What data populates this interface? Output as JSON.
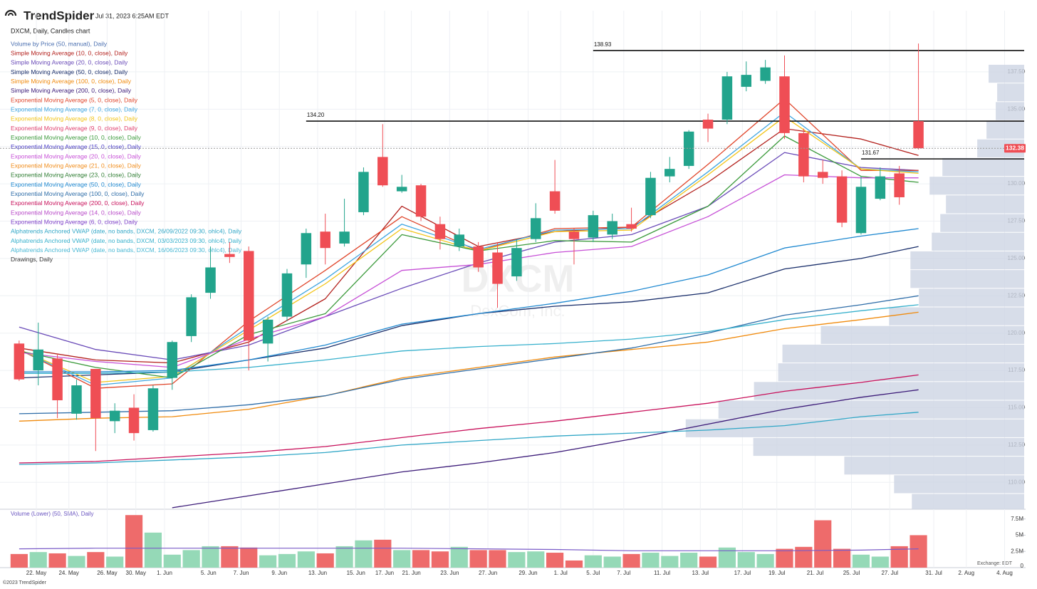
{
  "header": {
    "brand": "TrendSpider",
    "timestamp": "Jul 31, 2023 6:25AM EDT"
  },
  "footer": "©2023 TrendSpider",
  "chart_data": {
    "type": "candlestick",
    "title": "DXCM, Daily, Candles chart",
    "watermark": "DXCM",
    "watermark_subtitle": "DexCom, Inc.",
    "up_color": "#22a48c",
    "down_color": "#ef4e55",
    "grid": true,
    "xlim": [
      -1,
      52.6
    ],
    "xticks": [
      {
        "value": 0.9,
        "label": "22. May"
      },
      {
        "value": 2.6,
        "label": "24. May"
      },
      {
        "value": 4.6,
        "label": "26. May"
      },
      {
        "value": 6.1,
        "label": "30. May"
      },
      {
        "value": 7.6,
        "label": "1. Jun"
      },
      {
        "value": 9.9,
        "label": "5. Jun"
      },
      {
        "value": 11.6,
        "label": "7. Jun"
      },
      {
        "value": 13.6,
        "label": "9. Jun"
      },
      {
        "value": 15.6,
        "label": "13. Jun"
      },
      {
        "value": 17.6,
        "label": "15. Jun"
      },
      {
        "value": 19.1,
        "label": "17. Jun"
      },
      {
        "value": 20.5,
        "label": "21. Jun"
      },
      {
        "value": 22.5,
        "label": "23. Jun"
      },
      {
        "value": 24.5,
        "label": "27. Jun"
      },
      {
        "value": 26.6,
        "label": "29. Jun"
      },
      {
        "value": 28.3,
        "label": "1. Jul"
      },
      {
        "value": 30,
        "label": "5. Jul"
      },
      {
        "value": 31.6,
        "label": "7. Jul"
      },
      {
        "value": 33.6,
        "label": "11. Jul"
      },
      {
        "value": 35.6,
        "label": "13. Jul"
      },
      {
        "value": 37.8,
        "label": "17. Jul"
      },
      {
        "value": 39.6,
        "label": "19. Jul"
      },
      {
        "value": 41.6,
        "label": "21. Jul"
      },
      {
        "value": 43.5,
        "label": "25. Jul"
      },
      {
        "value": 45.5,
        "label": "27. Jul"
      },
      {
        "value": 47.8,
        "label": "31. Jul"
      },
      {
        "value": 49.5,
        "label": "2. Aug"
      },
      {
        "value": 51.5,
        "label": "4. Aug"
      }
    ],
    "ylim": [
      108.2,
      141.6
    ],
    "yticks": [
      {
        "value": 110,
        "label": "110.00"
      },
      {
        "value": 112.5,
        "label": "112.50"
      },
      {
        "value": 115,
        "label": "115.00"
      },
      {
        "value": 117.5,
        "label": "117.50"
      },
      {
        "value": 120,
        "label": "120.00"
      },
      {
        "value": 122.5,
        "label": "122.50"
      },
      {
        "value": 125,
        "label": "125.00"
      },
      {
        "value": 127.5,
        "label": "127.50"
      },
      {
        "value": 130,
        "label": "130.00"
      },
      {
        "value": 132.5,
        "label": "132.50"
      },
      {
        "value": 135,
        "label": "135.00"
      },
      {
        "value": 137.5,
        "label": "137.50"
      }
    ],
    "x": [
      0,
      1,
      2,
      3,
      4,
      5,
      6,
      7,
      8,
      9,
      10,
      11,
      12,
      13,
      14,
      15,
      16,
      17,
      18,
      19,
      20,
      21,
      22,
      23,
      24,
      25,
      26,
      27,
      28,
      29,
      30,
      31,
      32,
      33,
      34,
      35,
      36,
      37,
      38,
      39,
      40,
      41,
      42,
      43,
      44,
      45,
      46,
      47
    ],
    "candles": {
      "open": [
        119.3,
        117.5,
        118.3,
        114.6,
        117.6,
        114.1,
        115.0,
        113.5,
        117.0,
        119.8,
        122.7,
        125.3,
        125.5,
        119.3,
        121.1,
        124.6,
        126.8,
        126.0,
        128.1,
        131.8,
        129.5,
        129.9,
        127.3,
        125.8,
        125.8,
        125.4,
        123.8,
        126.3,
        129.5,
        126.8,
        126.4,
        126.6,
        127.3,
        127.9,
        130.5,
        131.2,
        134.3,
        134.3,
        136.5,
        136.9,
        137.2,
        133.4,
        130.8,
        130.5,
        126.7,
        129.0,
        130.7,
        134.2
      ],
      "high": [
        119.5,
        120.7,
        118.6,
        116.9,
        117.6,
        115.3,
        115.9,
        116.5,
        119.5,
        122.6,
        125.8,
        126.1,
        125.8,
        121.1,
        124.3,
        127.0,
        128.0,
        129.0,
        131.1,
        134.0,
        130.6,
        130.0,
        127.8,
        127.0,
        126.1,
        126.1,
        126.3,
        128.7,
        131.6,
        127.0,
        128.2,
        128.0,
        128.4,
        130.8,
        131.8,
        133.6,
        134.7,
        137.5,
        138.2,
        138.3,
        138.6,
        133.7,
        131.6,
        130.9,
        130.5,
        131.1,
        131.2,
        139.4
      ],
      "low": [
        116.8,
        116.5,
        114.3,
        114.2,
        112.1,
        113.3,
        112.8,
        113.4,
        116.2,
        119.4,
        122.3,
        124.7,
        117.5,
        118.1,
        120.8,
        123.7,
        124.6,
        125.8,
        127.9,
        129.8,
        129.4,
        127.5,
        125.6,
        125.5,
        124.1,
        121.7,
        123.5,
        126.1,
        128.0,
        124.6,
        126.1,
        126.3,
        126.8,
        127.7,
        130.1,
        131.0,
        132.8,
        134.0,
        136.2,
        136.7,
        133.0,
        130.1,
        130.0,
        127.1,
        126.6,
        128.9,
        128.6,
        132.3
      ],
      "close": [
        116.9,
        118.9,
        115.5,
        116.5,
        114.3,
        114.8,
        113.3,
        116.3,
        119.4,
        122.4,
        124.4,
        125.1,
        119.5,
        120.9,
        124.0,
        126.7,
        125.7,
        126.8,
        130.8,
        129.9,
        129.8,
        127.8,
        126.3,
        126.6,
        124.4,
        123.3,
        125.7,
        127.7,
        128.2,
        126.3,
        127.9,
        127.5,
        127.0,
        130.4,
        131.0,
        133.5,
        133.7,
        137.2,
        137.3,
        137.8,
        133.4,
        130.5,
        130.4,
        127.4,
        129.8,
        130.5,
        129.1,
        132.38
      ]
    },
    "volume": {
      "title": "Volume (Lower) (50, SMA), Daily",
      "up_color": "#95d9b7",
      "down_color": "#ee6b6b",
      "values": [
        2100000,
        2400000,
        2200000,
        1800000,
        2400000,
        1700000,
        8100000,
        5400000,
        2000000,
        2700000,
        3300000,
        3300000,
        3100000,
        1900000,
        2100000,
        2500000,
        2200000,
        3300000,
        4200000,
        4300000,
        2700000,
        2700000,
        2500000,
        3200000,
        2700000,
        2700000,
        2400000,
        2500000,
        2300000,
        1100000,
        1900000,
        1700000,
        2100000,
        2300000,
        1800000,
        2300000,
        1700000,
        3100000,
        2400000,
        2100000,
        2900000,
        3200000,
        7300000,
        2900000,
        2000000,
        1700000,
        3300000,
        5000000
      ],
      "ylim": [
        0,
        9000000
      ],
      "yticks": [
        0,
        {
          "value": 2500000,
          "label": "2.5M"
        },
        {
          "value": 5000000,
          "label": "5M"
        },
        {
          "value": 7500000,
          "label": "7.5M"
        }
      ],
      "sma": {
        "color": "#7a5cc8",
        "values": [
          2900000,
          3000000,
          3000000,
          3000000,
          3000000,
          3000000,
          2900000,
          2800000,
          2600000,
          2600000,
          2600000,
          2700000,
          2900000
        ]
      }
    },
    "exchange_note": "Exchange: EDT",
    "line_x": [
      0,
      4,
      8,
      12,
      16,
      20,
      24,
      28,
      32,
      36,
      40,
      44,
      47
    ],
    "indicators": [
      {
        "name": "Volume by Price (50, manual), Daily",
        "color": "#4a6fb0"
      },
      {
        "name": "Simple Moving Average (10, 0, close), Daily",
        "color": "#b3201c",
        "values": [
          119.0,
          118.2,
          118.0,
          119.4,
          122.3,
          128.5,
          125.8,
          126.8,
          127.1,
          130.1,
          133.7,
          133.0,
          131.9
        ]
      },
      {
        "name": "Simple Moving Average (20, 0, close), Daily",
        "color": "#6a4bb8",
        "values": [
          120.4,
          118.9,
          118.2,
          119.2,
          121.1,
          123.0,
          124.7,
          126.1,
          126.6,
          128.5,
          132.1,
          131.1,
          130.9
        ]
      },
      {
        "name": "Simple Moving Average (50, 0, close), Daily",
        "color": "#1a2f6b",
        "values": [
          117.0,
          117.2,
          117.4,
          118.2,
          119.0,
          120.5,
          121.3,
          121.8,
          122.1,
          122.7,
          124.3,
          125.0,
          125.8
        ]
      },
      {
        "name": "Simple Moving Average (100, 0, close), Daily",
        "color": "#f08a0c",
        "values": [
          114.1,
          114.3,
          114.4,
          114.9,
          115.8,
          117.0,
          117.7,
          118.4,
          118.9,
          119.4,
          120.3,
          120.9,
          121.4
        ]
      },
      {
        "name": "Simple Moving Average (200, 0, close), Daily",
        "color": "#3b1a78",
        "values": [
          null,
          null,
          108.3,
          109.1,
          109.9,
          110.7,
          111.3,
          112.0,
          112.9,
          113.9,
          114.9,
          115.7,
          116.2
        ]
      },
      {
        "name": "Exponential Moving Average (5, 0, close), Daily",
        "color": "#e0452a",
        "values": [
          118.9,
          116.3,
          116.6,
          120.8,
          124.2,
          127.8,
          125.5,
          127.0,
          127.1,
          131.3,
          135.7,
          130.9,
          130.9
        ]
      },
      {
        "name": "Exponential Moving Average (7, 0, close), Daily",
        "color": "#3ea5e0",
        "values": [
          118.9,
          116.5,
          117.0,
          120.4,
          123.6,
          127.3,
          125.6,
          126.9,
          127.0,
          130.8,
          134.8,
          131.0,
          130.8
        ]
      },
      {
        "name": "Exponential Moving Average (8, 0, close), Daily",
        "color": "#f2c418",
        "values": [
          118.9,
          116.7,
          117.1,
          120.2,
          123.3,
          127.0,
          125.5,
          126.8,
          126.9,
          130.6,
          134.5,
          131.0,
          130.7
        ]
      },
      {
        "name": "Exponential Moving Average (9, 0, close), Daily",
        "color": "#e0406e"
      },
      {
        "name": "Exponential Moving Average (10, 0, close), Daily",
        "color": "#3b9a3b",
        "values": [
          118.8,
          117.7,
          117.0,
          119.9,
          121.3,
          126.6,
          125.5,
          126.2,
          126.1,
          128.5,
          133.2,
          130.5,
          130.1
        ]
      },
      {
        "name": "Exponential Moving Average (15, 0, close), Daily",
        "color": "#4a3cc8"
      },
      {
        "name": "Exponential Moving Average (20, 0, close), Daily",
        "color": "#c64fd6",
        "values": [
          118.7,
          118.1,
          117.7,
          119.6,
          121.1,
          124.2,
          124.6,
          125.4,
          125.8,
          127.8,
          130.6,
          130.4,
          130.4
        ]
      },
      {
        "name": "Exponential Moving Average (21, 0, close), Daily",
        "color": "#f08c1a"
      },
      {
        "name": "Exponential Moving Average (23, 0, close), Daily",
        "color": "#2e7d32"
      },
      {
        "name": "Exponential Moving Average (50, 0, close), Daily",
        "color": "#1e88d0",
        "values": [
          117.4,
          117.4,
          117.5,
          118.2,
          119.2,
          120.6,
          121.3,
          122.0,
          122.8,
          123.9,
          125.7,
          126.5,
          127.0
        ]
      },
      {
        "name": "Exponential Moving Average (100, 0, close), Daily",
        "color": "#2e6da8",
        "values": [
          114.6,
          114.7,
          114.8,
          115.2,
          115.8,
          116.9,
          117.6,
          118.3,
          119.0,
          120.0,
          121.2,
          121.9,
          122.5
        ]
      },
      {
        "name": "Exponential Moving Average (200, 0, close), Daily",
        "color": "#c8105a",
        "values": [
          111.3,
          111.4,
          111.7,
          112.0,
          112.4,
          113.0,
          113.6,
          114.1,
          114.7,
          115.3,
          116.1,
          116.7,
          117.2
        ]
      },
      {
        "name": "Exponential Moving Average (14, 0, close), Daily",
        "color": "#b84ac8"
      },
      {
        "name": "Exponential Moving Average (6, 0, close), Daily",
        "color": "#7d3fc8"
      },
      {
        "name": "Alphatrends Anchored VWAP (date, no bands, DXCM, 26/09/2022 09:30, ohlc4), Daily",
        "color": "#2fa6c6",
        "values": [
          111.2,
          111.3,
          111.5,
          111.7,
          112.0,
          112.5,
          112.8,
          113.1,
          113.3,
          113.5,
          113.8,
          114.4,
          114.7
        ]
      },
      {
        "name": "Alphatrends Anchored VWAP (date, no bands, DXCM, 03/03/2023 09:30, ohlc4), Daily",
        "color": "#36b0cc",
        "values": [
          117.3,
          117.3,
          117.4,
          117.7,
          118.2,
          118.8,
          119.1,
          119.3,
          119.6,
          120.1,
          120.9,
          121.5,
          121.9
        ]
      },
      {
        "name": "Alphatrends Anchored VWAP (date, no bands, DXCM, 16/06/2023 09:30, ohlc4), Daily",
        "color": "#4ab8d4"
      },
      {
        "name": "Drawings, Daily",
        "color": "#333333"
      }
    ],
    "volume_profile": {
      "color": "#cdd5e3",
      "bins": [
        108,
        109.25,
        110.5,
        111.75,
        113,
        114.25,
        115.5,
        116.75,
        118,
        119.25,
        120.5,
        121.75,
        123,
        124.25,
        125.5,
        126.75,
        128,
        129.25,
        130.5,
        131.75,
        133,
        134.25,
        135.5,
        136.75,
        138
      ],
      "volumes": [
        158,
        183,
        253,
        381,
        476,
        430,
        380,
        346,
        340,
        286,
        190,
        148,
        160,
        160,
        130,
        118,
        110,
        133,
        115,
        66,
        53,
        40,
        38,
        50
      ]
    },
    "levels": [
      {
        "value": 138.93,
        "start": 30
      },
      {
        "value": 134.2,
        "label": "134.20",
        "start": 15
      },
      {
        "value": 131.67,
        "start": 44
      }
    ]
  }
}
